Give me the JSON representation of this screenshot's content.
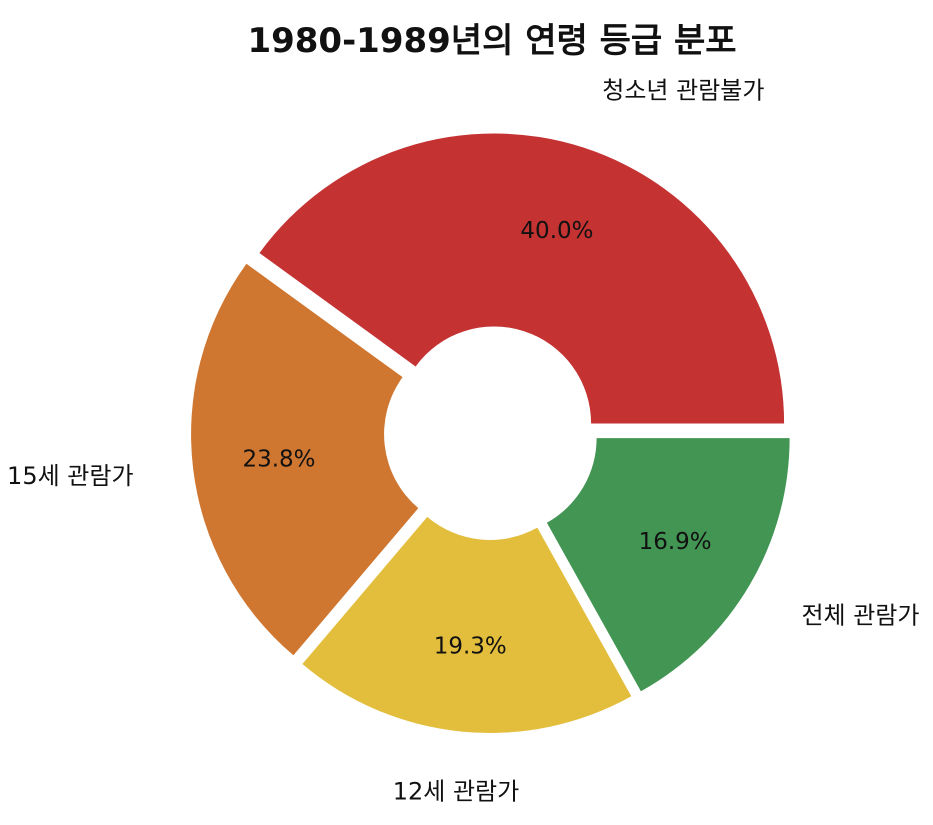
{
  "chart_data": {
    "type": "pie",
    "title": "1980-1989년의 연령 등급 분포",
    "donut": true,
    "categories": [
      "청소년 관람불가",
      "15세 관람가",
      "12세 관람가",
      "전체 관람가"
    ],
    "values": [
      40.0,
      23.8,
      19.3,
      16.9
    ],
    "percent_labels": [
      "40.0%",
      "23.8%",
      "19.3%",
      "16.9%"
    ],
    "colors": [
      "#c43232",
      "#cf7731",
      "#e3be3d",
      "#429553"
    ],
    "start_angle_deg": 0,
    "direction": "counterclockwise",
    "legend": "none"
  }
}
